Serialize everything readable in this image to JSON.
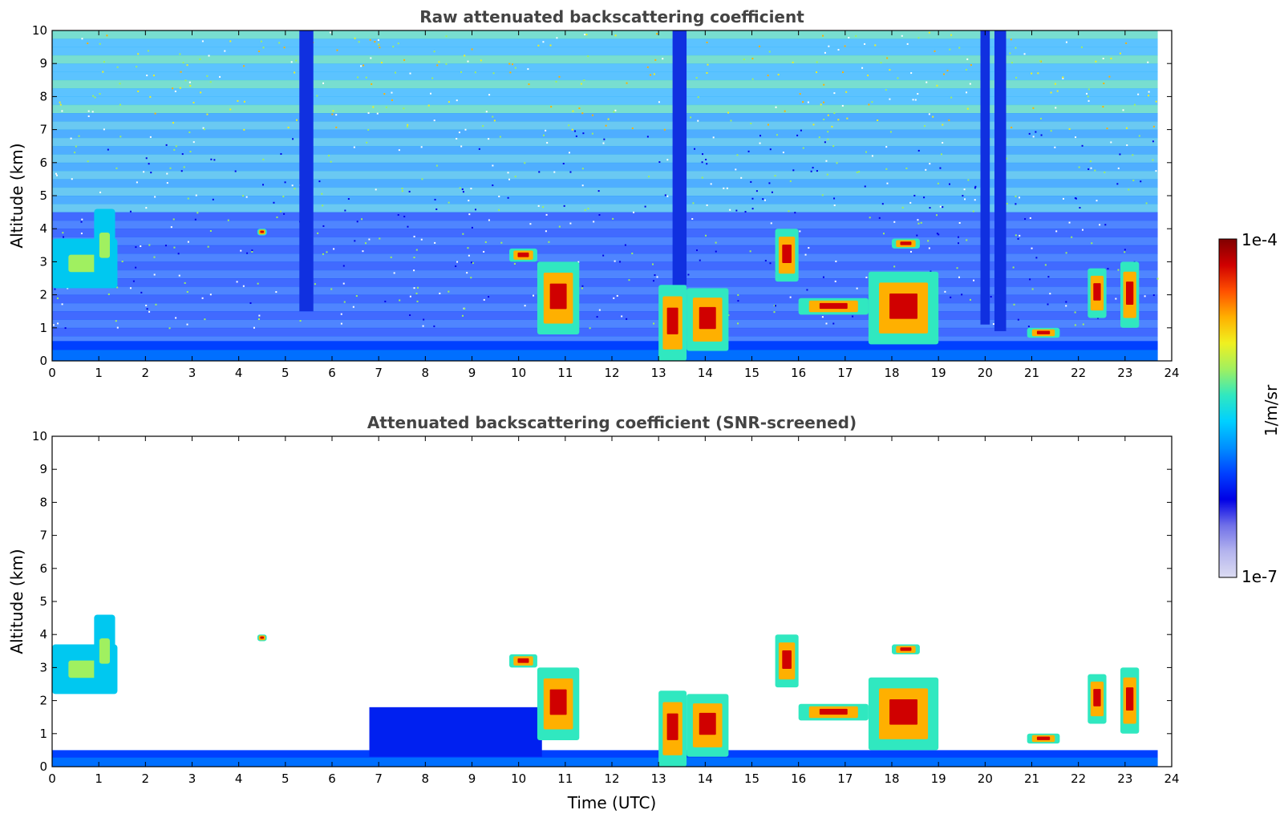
{
  "chart_data": [
    {
      "type": "heatmap",
      "title": "Raw attenuated backscattering coefficient",
      "xlabel": "",
      "ylabel": "Altitude (km)",
      "xlim": [
        0,
        24
      ],
      "ylim": [
        0,
        10
      ],
      "x_ticks": [
        "0",
        "1",
        "2",
        "3",
        "4",
        "5",
        "6",
        "7",
        "8",
        "9",
        "10",
        "11",
        "12",
        "13",
        "14",
        "15",
        "16",
        "17",
        "18",
        "19",
        "20",
        "21",
        "22",
        "23",
        "24"
      ],
      "y_ticks": [
        "0",
        "1",
        "2",
        "3",
        "4",
        "5",
        "6",
        "7",
        "8",
        "9",
        "10"
      ],
      "background_noise": true,
      "features": [
        {
          "kind": "boundary_layer",
          "x0": 0,
          "x1": 23.7,
          "top": 0.6
        },
        {
          "kind": "aerosol_layer",
          "x0": 0,
          "x1": 1.4,
          "y0": 2.2,
          "y1": 3.7
        },
        {
          "kind": "aerosol_layer",
          "x0": 0.9,
          "x1": 1.35,
          "y0": 2.4,
          "y1": 4.6
        },
        {
          "kind": "cloud",
          "x0": 4.4,
          "x1": 4.6,
          "y0": 3.8,
          "y1": 4.0
        },
        {
          "kind": "cloud",
          "x0": 9.8,
          "x1": 10.4,
          "y0": 3.0,
          "y1": 3.4
        },
        {
          "kind": "cloud",
          "x0": 10.4,
          "x1": 11.3,
          "y0": 0.8,
          "y1": 3.0
        },
        {
          "kind": "cloud",
          "x0": 13.0,
          "x1": 13.6,
          "y0": 0.0,
          "y1": 2.3
        },
        {
          "kind": "cloud",
          "x0": 13.6,
          "x1": 14.5,
          "y0": 0.3,
          "y1": 2.2
        },
        {
          "kind": "cloud",
          "x0": 15.5,
          "x1": 16.0,
          "y0": 2.4,
          "y1": 4.0
        },
        {
          "kind": "cloud",
          "x0": 16.0,
          "x1": 17.5,
          "y0": 1.4,
          "y1": 1.9
        },
        {
          "kind": "cloud",
          "x0": 17.5,
          "x1": 19.0,
          "y0": 0.5,
          "y1": 2.7
        },
        {
          "kind": "cloud",
          "x0": 18.0,
          "x1": 18.6,
          "y0": 3.4,
          "y1": 3.7
        },
        {
          "kind": "cloud",
          "x0": 20.9,
          "x1": 21.6,
          "y0": 0.7,
          "y1": 1.0
        },
        {
          "kind": "cloud",
          "x0": 22.2,
          "x1": 22.6,
          "y0": 1.3,
          "y1": 2.8
        },
        {
          "kind": "cloud",
          "x0": 22.9,
          "x1": 23.3,
          "y0": 1.0,
          "y1": 3.0
        },
        {
          "kind": "attenuated_column",
          "x0": 5.3,
          "x1": 5.6,
          "y0": 1.5,
          "y1": 10
        },
        {
          "kind": "attenuated_column",
          "x0": 13.3,
          "x1": 13.6,
          "y0": 2.3,
          "y1": 10
        },
        {
          "kind": "attenuated_column",
          "x0": 19.9,
          "x1": 20.1,
          "y0": 1.1,
          "y1": 10
        },
        {
          "kind": "attenuated_column",
          "x0": 20.2,
          "x1": 20.45,
          "y0": 0.9,
          "y1": 10
        }
      ]
    },
    {
      "type": "heatmap",
      "title": "Attenuated backscattering coefficient (SNR-screened)",
      "xlabel": "Time (UTC)",
      "ylabel": "Altitude (km)",
      "xlim": [
        0,
        24
      ],
      "ylim": [
        0,
        10
      ],
      "x_ticks": [
        "0",
        "1",
        "2",
        "3",
        "4",
        "5",
        "6",
        "7",
        "8",
        "9",
        "10",
        "11",
        "12",
        "13",
        "14",
        "15",
        "16",
        "17",
        "18",
        "19",
        "20",
        "21",
        "22",
        "23",
        "24"
      ],
      "y_ticks": [
        "0",
        "1",
        "2",
        "3",
        "4",
        "5",
        "6",
        "7",
        "8",
        "9",
        "10"
      ],
      "background_noise": false,
      "features": [
        {
          "kind": "boundary_layer",
          "x0": 0,
          "x1": 23.7,
          "top": 0.5
        },
        {
          "kind": "residual_layer",
          "x0": 6.8,
          "x1": 10.5,
          "y0": 0.3,
          "y1": 1.8
        },
        {
          "kind": "aerosol_layer",
          "x0": 0,
          "x1": 1.4,
          "y0": 2.2,
          "y1": 3.7
        },
        {
          "kind": "aerosol_layer",
          "x0": 0.9,
          "x1": 1.35,
          "y0": 2.4,
          "y1": 4.6
        },
        {
          "kind": "cloud",
          "x0": 4.4,
          "x1": 4.6,
          "y0": 3.8,
          "y1": 4.0
        },
        {
          "kind": "cloud",
          "x0": 9.8,
          "x1": 10.4,
          "y0": 3.0,
          "y1": 3.4
        },
        {
          "kind": "cloud",
          "x0": 10.4,
          "x1": 11.3,
          "y0": 0.8,
          "y1": 3.0
        },
        {
          "kind": "cloud",
          "x0": 13.0,
          "x1": 13.6,
          "y0": 0.0,
          "y1": 2.3
        },
        {
          "kind": "cloud",
          "x0": 13.6,
          "x1": 14.5,
          "y0": 0.3,
          "y1": 2.2
        },
        {
          "kind": "cloud",
          "x0": 15.5,
          "x1": 16.0,
          "y0": 2.4,
          "y1": 4.0
        },
        {
          "kind": "cloud",
          "x0": 16.0,
          "x1": 17.5,
          "y0": 1.4,
          "y1": 1.9
        },
        {
          "kind": "cloud",
          "x0": 17.5,
          "x1": 19.0,
          "y0": 0.5,
          "y1": 2.7
        },
        {
          "kind": "cloud",
          "x0": 18.0,
          "x1": 18.6,
          "y0": 3.4,
          "y1": 3.7
        },
        {
          "kind": "cloud",
          "x0": 20.9,
          "x1": 21.6,
          "y0": 0.7,
          "y1": 1.0
        },
        {
          "kind": "cloud",
          "x0": 22.2,
          "x1": 22.6,
          "y0": 1.3,
          "y1": 2.8
        },
        {
          "kind": "cloud",
          "x0": 22.9,
          "x1": 23.3,
          "y0": 1.0,
          "y1": 3.0
        }
      ]
    }
  ],
  "colorbar": {
    "label": "1/m/sr",
    "max_label": "1e-4",
    "min_label": "1e-7",
    "scale": "log",
    "range": [
      1e-07,
      0.0001
    ],
    "colormap": [
      "#dcdcf2",
      "#b4b4ee",
      "#7070e8",
      "#0000e6",
      "#0040ff",
      "#0090ff",
      "#00d0ff",
      "#30e8c0",
      "#a0f060",
      "#f0f020",
      "#ffb000",
      "#ff5000",
      "#d00000",
      "#800000"
    ]
  }
}
